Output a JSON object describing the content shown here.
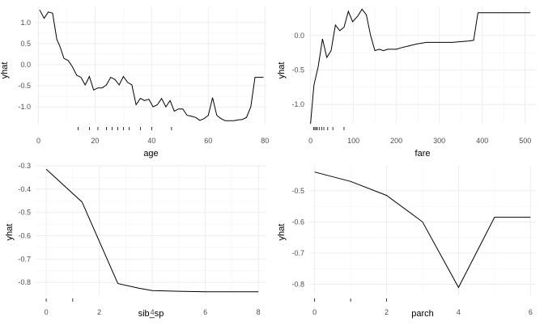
{
  "chart_data": [
    {
      "type": "line",
      "xlabel": "age",
      "ylabel": "yhat",
      "xlim": [
        -1,
        80.5
      ],
      "ylim": [
        -1.4,
        1.38
      ],
      "xticks": [
        0,
        20,
        40,
        60,
        80
      ],
      "yticks": [
        -1.0,
        -0.5,
        0.0,
        0.5,
        1.0
      ],
      "ytick_labels": [
        "-1.0",
        "-0.5",
        "0.0",
        "0.5",
        "1.0"
      ],
      "x": [
        0.4,
        2,
        3.5,
        5,
        6.5,
        7.5,
        9,
        10.5,
        12,
        13.5,
        15,
        16.5,
        18,
        19.5,
        21,
        22.5,
        24,
        25.5,
        27,
        28.5,
        30,
        31.5,
        33,
        34.5,
        36,
        37.5,
        39,
        40.5,
        42,
        43.5,
        45,
        46.5,
        48,
        49.5,
        51,
        52.5,
        54,
        55.5,
        57,
        58.5,
        60,
        61.5,
        63,
        64.5,
        66,
        67.5,
        69,
        70.5,
        72,
        73.5,
        75,
        76.5,
        78,
        79.5
      ],
      "y": [
        1.3,
        1.1,
        1.25,
        1.22,
        0.6,
        0.45,
        0.15,
        0.1,
        -0.05,
        -0.25,
        -0.3,
        -0.48,
        -0.28,
        -0.6,
        -0.55,
        -0.55,
        -0.48,
        -0.3,
        -0.35,
        -0.48,
        -0.28,
        -0.42,
        -0.48,
        -0.95,
        -0.8,
        -0.85,
        -0.82,
        -1.0,
        -0.95,
        -0.8,
        -1.0,
        -0.85,
        -1.1,
        -1.05,
        -1.05,
        -1.2,
        -1.22,
        -1.25,
        -1.32,
        -1.28,
        -1.2,
        -0.78,
        -1.2,
        -1.28,
        -1.33,
        -1.33,
        -1.33,
        -1.31,
        -1.3,
        -1.25,
        -1.0,
        -0.3,
        -0.3,
        -0.3
      ],
      "rug": [
        14,
        18,
        21,
        24,
        26,
        28,
        30,
        32,
        36,
        40,
        47
      ]
    },
    {
      "type": "line",
      "xlabel": "fare",
      "ylabel": "yhat",
      "xlim": [
        -3,
        525
      ],
      "ylim": [
        -1.28,
        0.42
      ],
      "xticks": [
        0,
        100,
        200,
        300,
        400,
        500
      ],
      "yticks": [
        -1.0,
        -0.5,
        0.0
      ],
      "ytick_labels": [
        "-1.0",
        "-0.5",
        "0.0"
      ],
      "x": [
        0,
        8,
        18,
        28,
        38,
        48,
        58,
        68,
        78,
        88,
        98,
        110,
        120,
        130,
        140,
        150,
        160,
        170,
        180,
        200,
        210,
        230,
        250,
        270,
        290,
        310,
        330,
        350,
        370,
        380,
        390,
        400,
        450,
        500,
        512
      ],
      "y": [
        -1.28,
        -0.72,
        -0.45,
        -0.05,
        -0.32,
        -0.22,
        0.15,
        0.07,
        0.12,
        0.35,
        0.2,
        0.28,
        0.38,
        0.3,
        0.0,
        -0.22,
        -0.2,
        -0.22,
        -0.2,
        -0.2,
        -0.18,
        -0.15,
        -0.12,
        -0.1,
        -0.1,
        -0.1,
        -0.1,
        -0.09,
        -0.08,
        -0.07,
        0.33,
        0.33,
        0.33,
        0.33,
        0.33
      ],
      "rug": [
        7,
        10,
        13,
        16,
        21,
        26,
        31,
        40,
        52,
        78
      ]
    },
    {
      "type": "line",
      "xlabel": "sib_sp",
      "ylabel": "yhat",
      "xlim": [
        -0.4,
        8.3
      ],
      "ylim": [
        -0.855,
        -0.3
      ],
      "xticks": [
        0,
        2,
        4,
        6,
        8
      ],
      "yticks": [
        -0.8,
        -0.7,
        -0.6,
        -0.5,
        -0.4,
        -0.3
      ],
      "ytick_labels": [
        "-0.8",
        "-0.7",
        "-0.6",
        "-0.5",
        "-0.4",
        "-0.3"
      ],
      "x": [
        0,
        1.35,
        2.7,
        3.5,
        4,
        5,
        6,
        7,
        8
      ],
      "y": [
        -0.315,
        -0.455,
        -0.805,
        -0.825,
        -0.835,
        -0.838,
        -0.84,
        -0.84,
        -0.84
      ],
      "rug": [
        0,
        1
      ]
    },
    {
      "type": "line",
      "xlabel": "parch",
      "ylabel": "yhat",
      "xlim": [
        -0.15,
        6.15
      ],
      "ylim": [
        -0.835,
        -0.42
      ],
      "xticks": [
        0,
        2,
        4,
        6
      ],
      "yticks": [
        -0.8,
        -0.7,
        -0.6,
        -0.5
      ],
      "ytick_labels": [
        "-0.8",
        "-0.7",
        "-0.6",
        "-0.5"
      ],
      "x": [
        0,
        1,
        2,
        3,
        4,
        5,
        6
      ],
      "y": [
        -0.44,
        -0.47,
        -0.515,
        -0.6,
        -0.81,
        -0.585,
        -0.585
      ],
      "rug": [
        0,
        1,
        2
      ]
    }
  ]
}
